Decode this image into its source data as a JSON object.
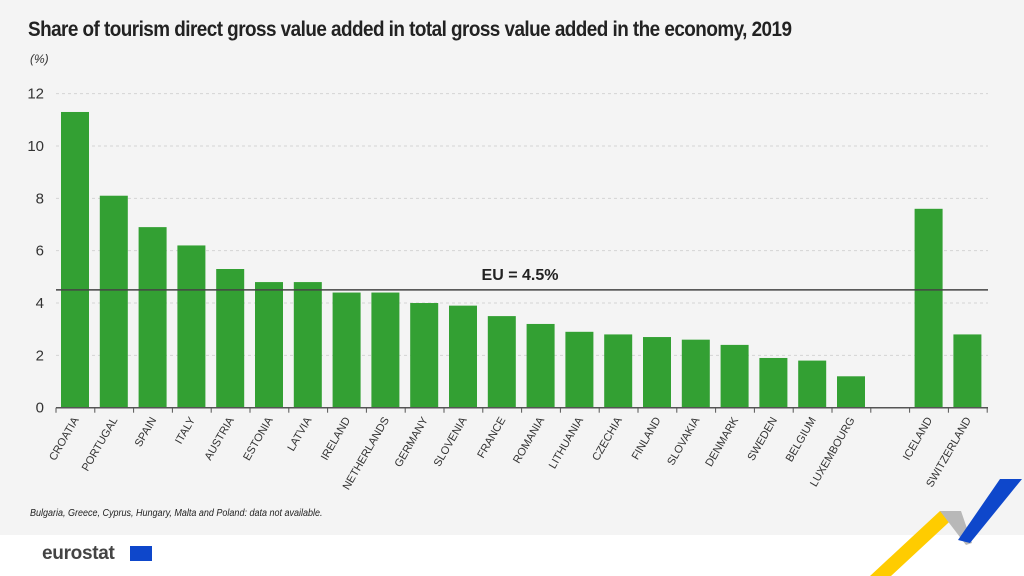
{
  "title": "Share of tourism direct gross value added in total gross value added in the economy, 2019",
  "unit": "(%)",
  "note": "Bulgaria, Greece, Cyprus, Hungary, Malta and Poland: data not available.",
  "logo": "eurostat",
  "colors": {
    "bar": "#33a033",
    "background": "#f4f4f4",
    "ref_line": "#444444"
  },
  "chart_data": {
    "type": "bar",
    "title": "Share of tourism direct gross value added in total gross value added in the economy, 2019",
    "ylabel": "(%)",
    "ylim": [
      0,
      12
    ],
    "yticks": [
      "0",
      "2",
      "4",
      "6",
      "8",
      "10",
      "12"
    ],
    "grid": true,
    "categories": [
      "CROATIA",
      "PORTUGAL",
      "SPAIN",
      "ITALY",
      "AUSTRIA",
      "ESTONIA",
      "LATVIA",
      "IRELAND",
      "NETHERLANDS",
      "GERMANY",
      "SLOVENIA",
      "FRANCE",
      "ROMANIA",
      "LITHUANIA",
      "CZECHIA",
      "FINLAND",
      "SLOVAKIA",
      "DENMARK",
      "SWEDEN",
      "BELGIUM",
      "LUXEMBOURG",
      "",
      "ICELAND",
      "SWITZERLAND"
    ],
    "values": [
      11.3,
      8.1,
      6.9,
      6.2,
      5.3,
      4.8,
      4.8,
      4.4,
      4.4,
      4.0,
      3.9,
      3.5,
      3.2,
      2.9,
      2.8,
      2.7,
      2.6,
      2.4,
      1.9,
      1.8,
      1.2,
      null,
      7.6,
      2.8
    ],
    "reference_line": {
      "label": "EU = 4.5%",
      "value": 4.5
    }
  }
}
